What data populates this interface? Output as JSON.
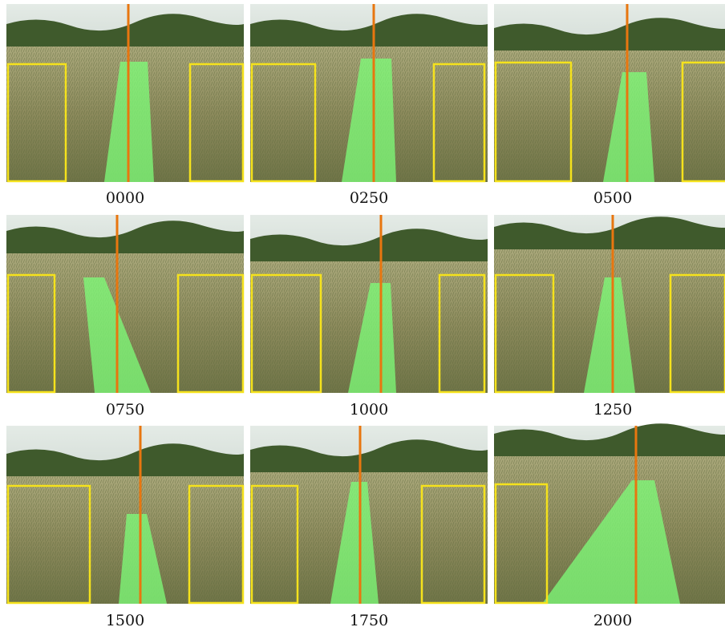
{
  "panels": [
    {
      "label": "0000"
    },
    {
      "label": "0250"
    },
    {
      "label": "0500"
    },
    {
      "label": "0750"
    },
    {
      "label": "1000"
    },
    {
      "label": "1250"
    },
    {
      "label": "1500"
    },
    {
      "label": "1750"
    },
    {
      "label": "2000"
    }
  ]
}
